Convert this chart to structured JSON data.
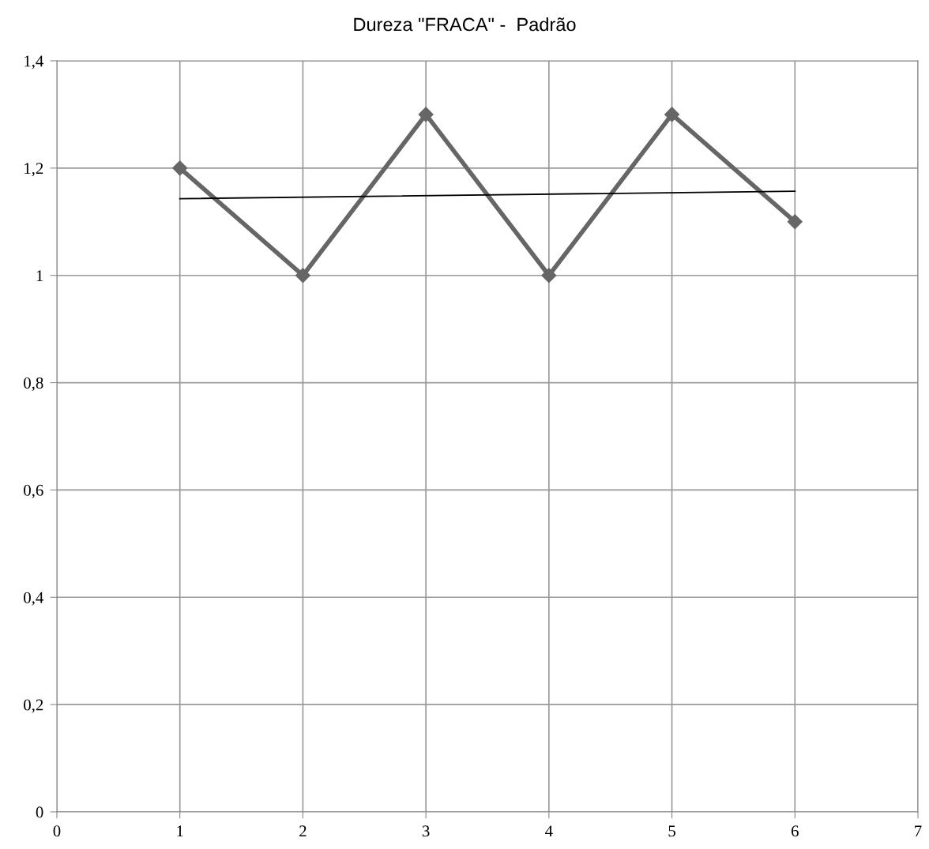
{
  "chart_data": {
    "type": "line",
    "title": "Dureza \"FRACA\" -  Padrão",
    "x": [
      1,
      2,
      3,
      4,
      5,
      6
    ],
    "series": [
      {
        "color": "#666666",
        "values": [
          1.2,
          1.0,
          1.3,
          1.0,
          1.3,
          1.1
        ],
        "marker": "diamond",
        "line_style": "solid"
      },
      {
        "type": "line",
        "color": "#000000",
        "x": [
          1,
          6
        ],
        "values": [
          1.143,
          1.157
        ],
        "marker": "none",
        "line_style": "solid"
      }
    ],
    "xlim": [
      0,
      7
    ],
    "xticks": [
      0,
      1,
      2,
      3,
      4,
      5,
      6,
      7
    ],
    "ylim": [
      0,
      1.4
    ],
    "yticks": [
      {
        "value": 0,
        "label": "0"
      },
      {
        "value": 0.2,
        "label": "0,2"
      },
      {
        "value": 0.4,
        "label": "0,4"
      },
      {
        "value": 0.6,
        "label": "0,6"
      },
      {
        "value": 0.8,
        "label": "0,8"
      },
      {
        "value": 1,
        "label": "1"
      },
      {
        "value": 1.2,
        "label": "1,2"
      },
      {
        "value": 1.4,
        "label": "1,4"
      }
    ],
    "grid": true
  }
}
